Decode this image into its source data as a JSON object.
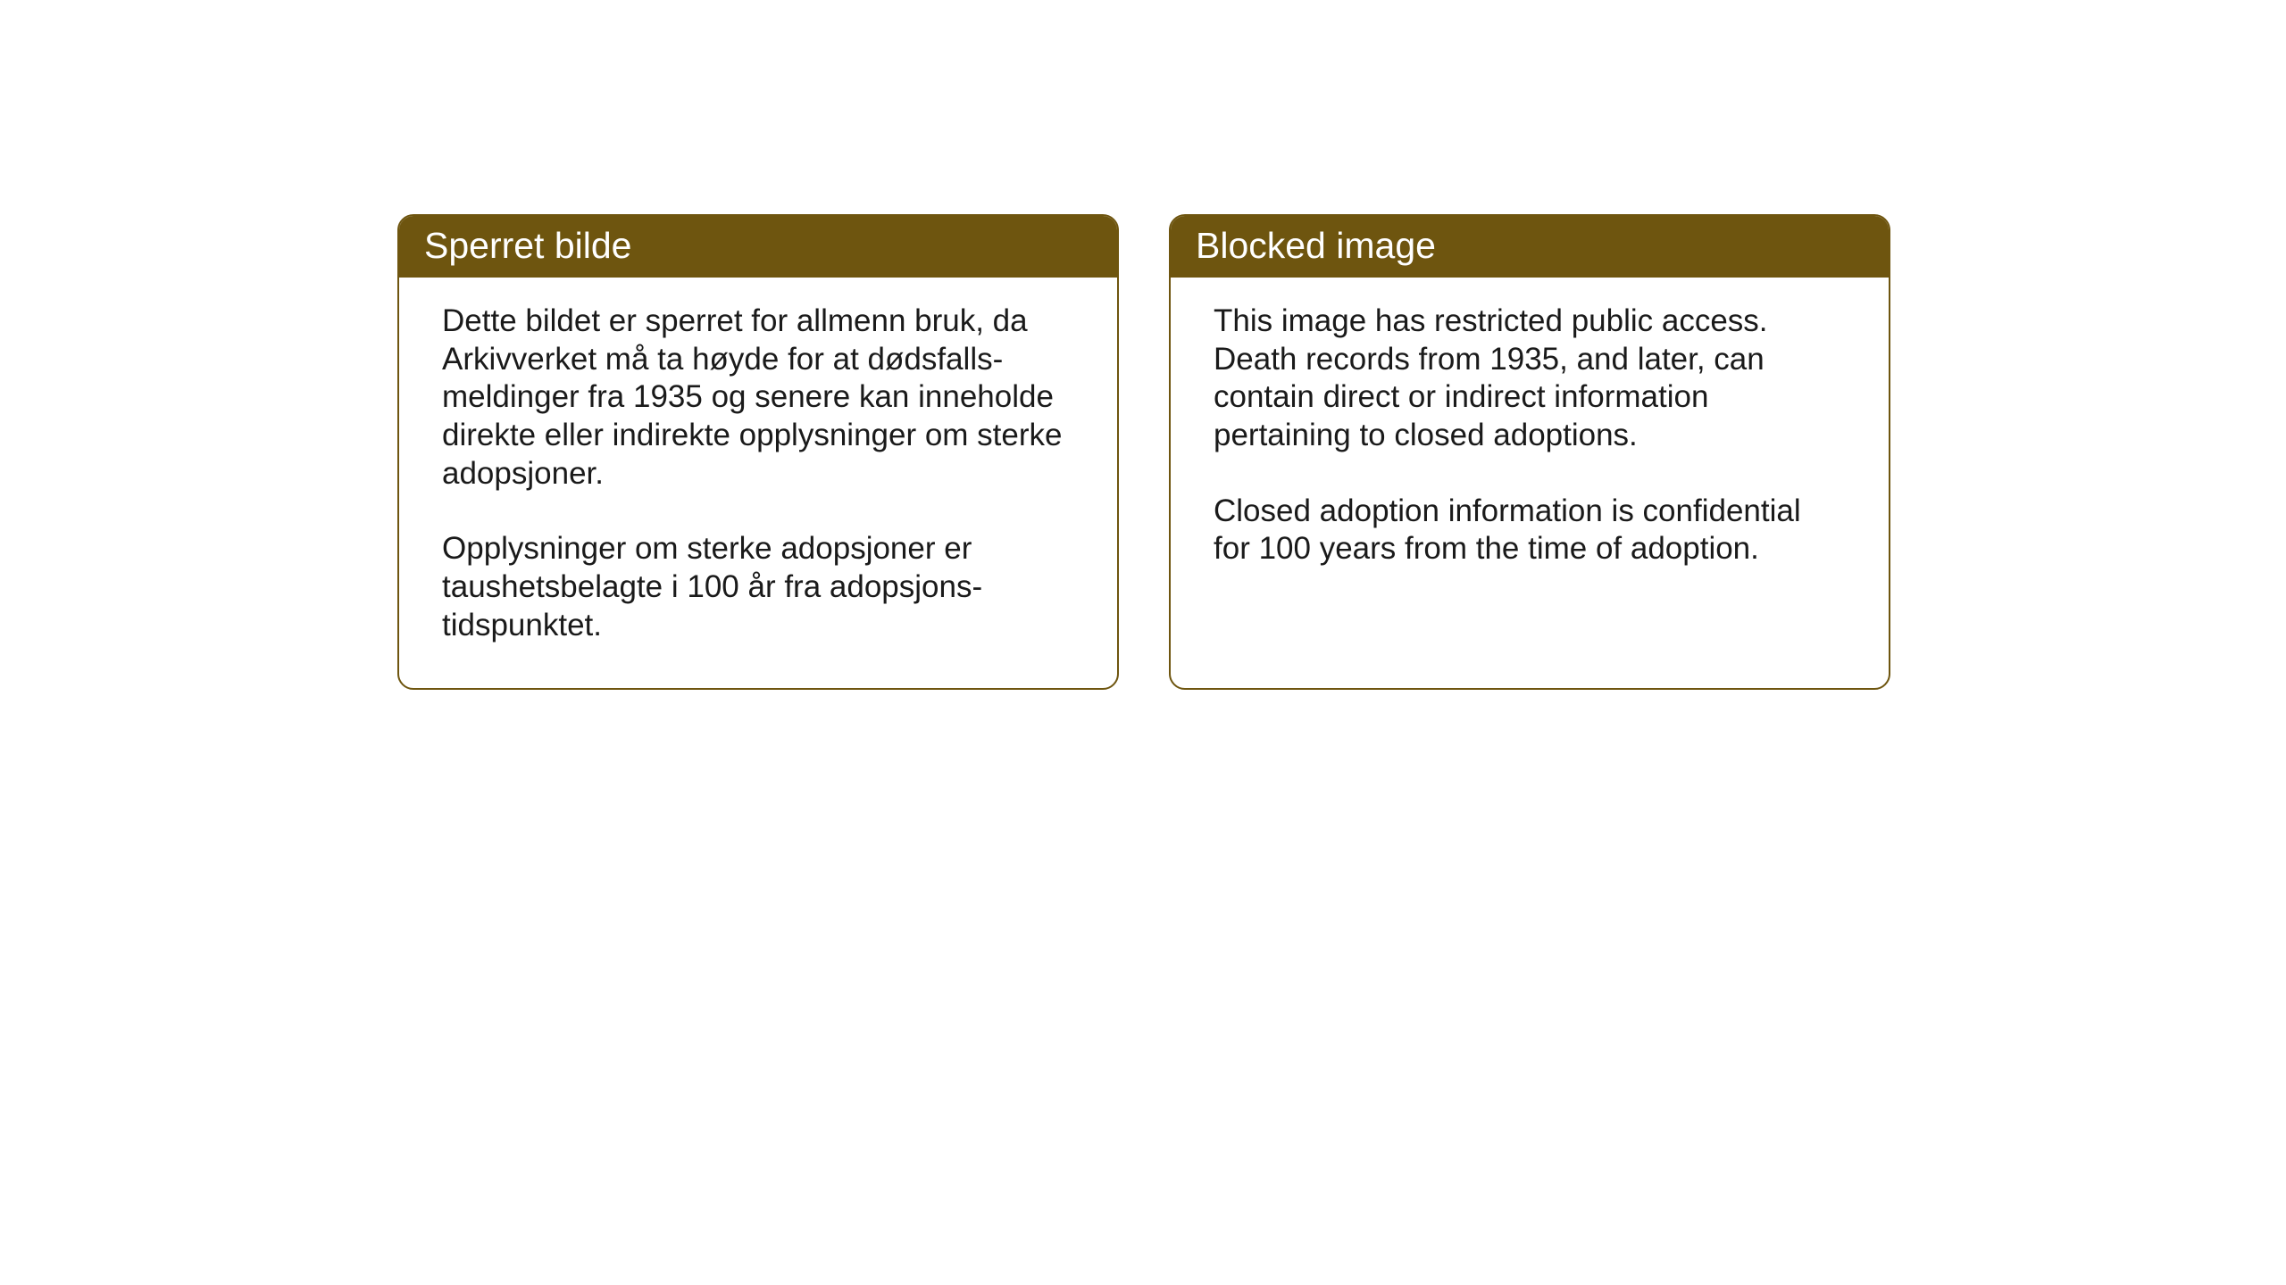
{
  "layout": {
    "background_color": "#ffffff",
    "card_border_color": "#6e550f",
    "card_header_bg": "#6e550f",
    "card_header_text_color": "#ffffff",
    "body_text_color": "#1a1a1a",
    "header_fontsize": 41,
    "body_fontsize": 35,
    "border_radius": 18,
    "border_width": 2,
    "gap": 56
  },
  "cards": {
    "norwegian": {
      "title": "Sperret bilde",
      "paragraph1": "Dette bildet er sperret for allmenn bruk, da Arkivverket må ta høyde for at dødsfalls-meldinger fra 1935 og senere kan inneholde direkte eller indirekte opplysninger om sterke adopsjoner.",
      "paragraph2": "Opplysninger om sterke adopsjoner er taushetsbelagte i 100 år fra adopsjons-tidspunktet."
    },
    "english": {
      "title": "Blocked image",
      "paragraph1": "This image has restricted public access. Death records from 1935, and later, can contain direct or indirect information pertaining to closed adoptions.",
      "paragraph2": "Closed adoption information is confidential for 100 years from the time of adoption."
    }
  }
}
